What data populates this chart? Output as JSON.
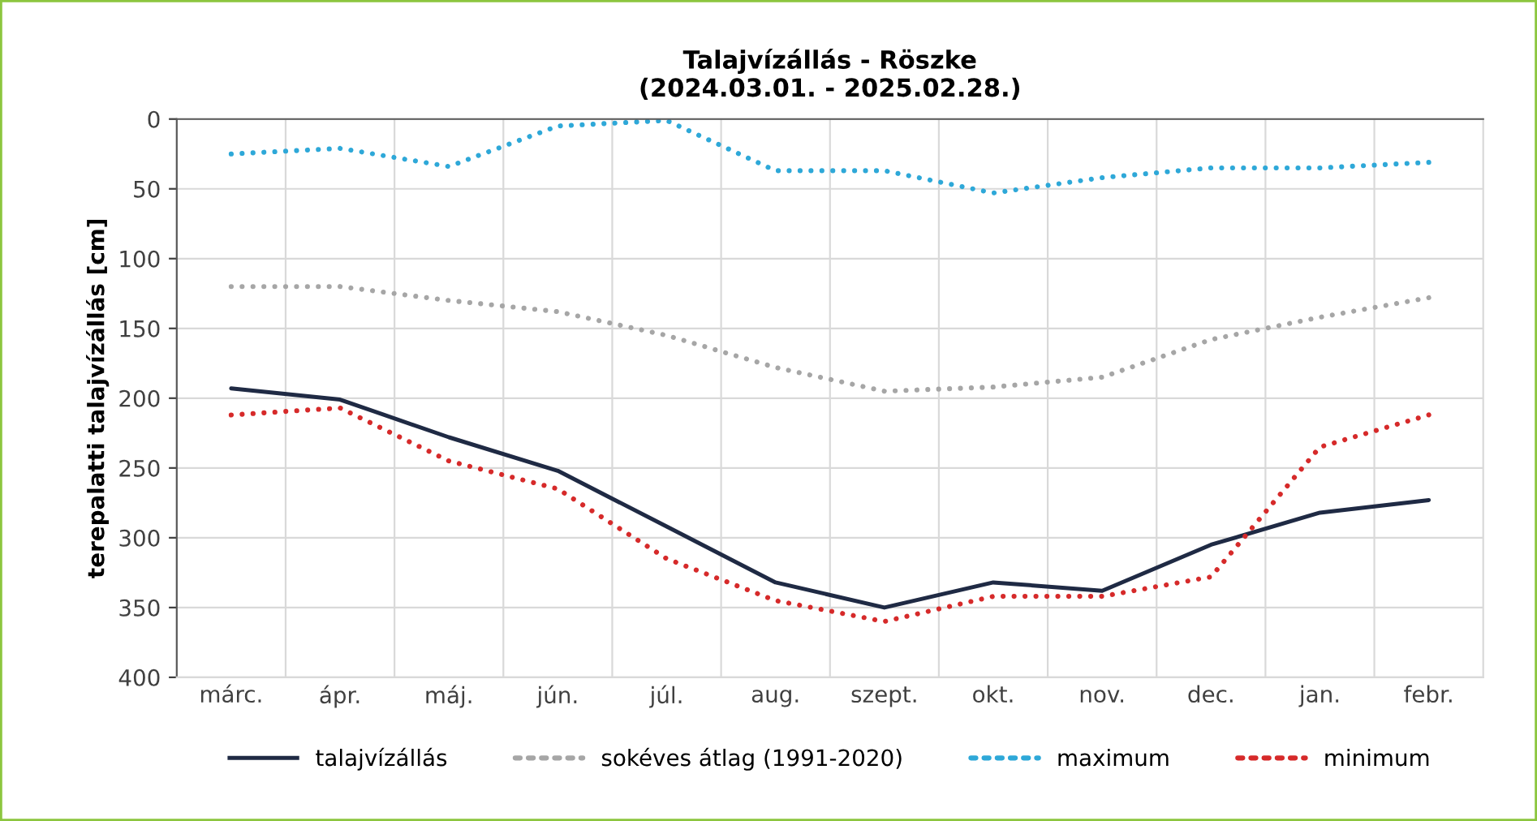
{
  "chart_data": {
    "type": "line",
    "title": "Talajvízállás - Röszke\n(2024.03.01. - 2025.02.28.)",
    "ylabel": "terepalatti talajvízállás [cm]",
    "categories": [
      "márc.",
      "ápr.",
      "máj.",
      "jún.",
      "júl.",
      "aug.",
      "szept.",
      "okt.",
      "nov.",
      "dec.",
      "jan.",
      "febr."
    ],
    "series": [
      {
        "name": "talajvízállás",
        "color": "#1f2a44",
        "line_style": "solid",
        "values": [
          193,
          201,
          228,
          252,
          292,
          332,
          350,
          332,
          338,
          305,
          282,
          273
        ]
      },
      {
        "name": "sokéves átlag (1991-2020)",
        "color": "#a6a6a6",
        "line_style": "dotted",
        "values": [
          120,
          120,
          130,
          138,
          155,
          178,
          195,
          192,
          185,
          158,
          142,
          128
        ]
      },
      {
        "name": "maximum",
        "color": "#2ea8d8",
        "line_style": "dotted",
        "values": [
          25,
          21,
          34,
          5,
          1,
          37,
          37,
          53,
          42,
          35,
          35,
          31
        ]
      },
      {
        "name": "minimum",
        "color": "#d62a2a",
        "line_style": "dotted",
        "values": [
          212,
          207,
          245,
          265,
          315,
          345,
          360,
          342,
          342,
          328,
          235,
          212
        ]
      }
    ],
    "ylim": [
      400,
      0
    ],
    "yticks": [
      0,
      50,
      100,
      150,
      200,
      250,
      300,
      350,
      400
    ],
    "grid": true,
    "legend": "bottom",
    "marker": "none"
  }
}
